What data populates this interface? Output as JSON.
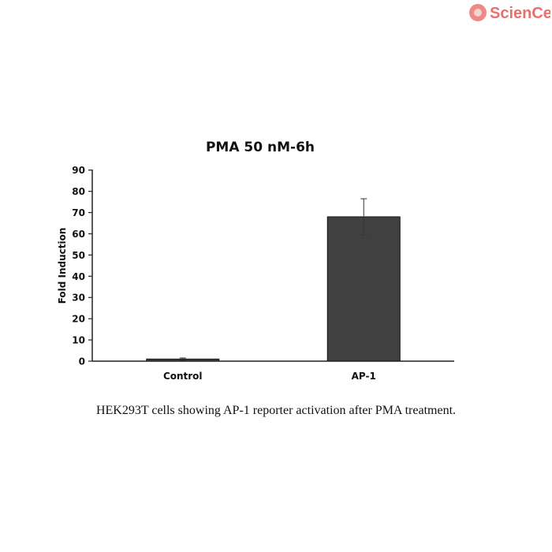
{
  "logo": {
    "text": "ScienCell",
    "color": "#e8706c"
  },
  "caption": "HEK293T cells showing AP-1 reporter activation after PMA treatment.",
  "chart_data": {
    "type": "bar",
    "title": "PMA 50 nM-6h",
    "xlabel": "",
    "ylabel": "Fold Induction",
    "categories": [
      "Control",
      "AP-1"
    ],
    "values": [
      1,
      68
    ],
    "error": [
      [
        0.5,
        1.5
      ],
      [
        59.5,
        76.5
      ]
    ],
    "ylim": [
      0,
      90
    ],
    "yticks": [
      0,
      10,
      20,
      30,
      40,
      50,
      60,
      70,
      80,
      90
    ],
    "grid": false,
    "bar_color": "#404040"
  }
}
